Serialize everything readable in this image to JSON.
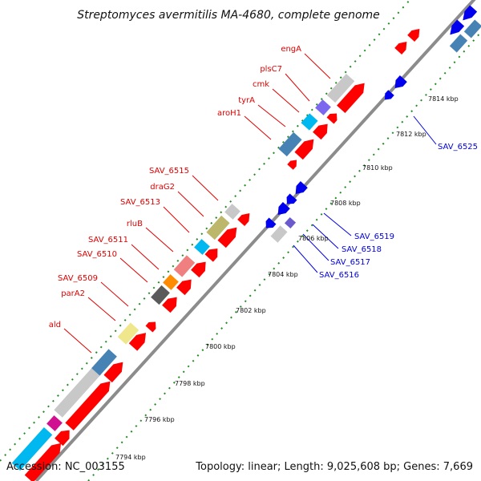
{
  "title": "Streptomyces avermitilis MA-4680, complete genome",
  "footer": {
    "accession": "Accession: NC_003155",
    "summary": "Topology: linear; Length: 9,025,608 bp; Genes: 7,669"
  },
  "colors": {
    "forward_gene": "#ff0000",
    "reverse_gene": "#0000ff",
    "backbone": "#8c8c8c",
    "tick": "#228b22"
  },
  "kbp_labels": [
    "7794 kbp",
    "7796 kbp",
    "7798 kbp",
    "7800 kbp",
    "7802 kbp",
    "7804 kbp",
    "7806 kbp",
    "7808 kbp",
    "7810 kbp",
    "7812 kbp",
    "7814 kbp"
  ],
  "forward_labels": [
    "engA",
    "plsC7",
    "cmk",
    "tyrA",
    "aroH1",
    "SAV_6515",
    "draG2",
    "SAV_6513",
    "rluB",
    "SAV_6511",
    "SAV_6510",
    "SAV_6509",
    "parA2",
    "ald"
  ],
  "reverse_labels": [
    "SAV_6525",
    "SAV_6519",
    "SAV_6518",
    "SAV_6517",
    "SAV_6516"
  ]
}
